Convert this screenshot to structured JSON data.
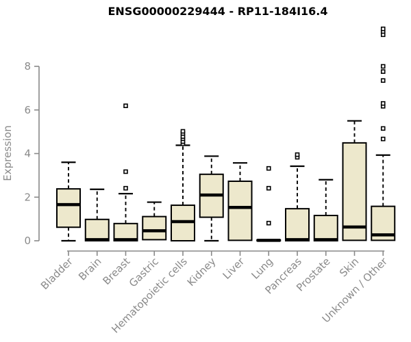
{
  "chart_data": {
    "type": "box",
    "title": "ENSG00000229444 - RP11-184I16.4",
    "ylabel": "Expression",
    "xlabel": "",
    "ylim": [
      0,
      8
    ],
    "yticks": [
      0,
      2,
      4,
      6,
      8
    ],
    "grid": false,
    "legend": false,
    "colors": {
      "box_fill": "#EDE8CC",
      "box_stroke": "#000000",
      "median": "#000000",
      "whisker": "#000000",
      "outlier_stroke": "#000000",
      "outlier_fill": "#ffffff",
      "axis": "#898989",
      "tick_label": "#8a8a8a",
      "title": "#000000",
      "background": "#ffffff"
    },
    "categories": [
      "Bladder",
      "Brain",
      "Breast",
      "Gastric",
      "Hematopoietic cells",
      "Kidney",
      "Liver",
      "Lung",
      "Pancreas",
      "Prostate",
      "Skin",
      "Unknown / Other"
    ],
    "series": [
      {
        "category": "Bladder",
        "whisker_low": 0,
        "q1": 0.62,
        "median": 1.66,
        "q3": 2.38,
        "whisker_high": 3.6,
        "outliers": []
      },
      {
        "category": "Brain",
        "whisker_low": 0,
        "q1": 0,
        "median": 0.05,
        "q3": 0.98,
        "whisker_high": 2.36,
        "outliers": []
      },
      {
        "category": "Breast",
        "whisker_low": 0,
        "q1": 0,
        "median": 0.05,
        "q3": 0.79,
        "whisker_high": 2.16,
        "outliers": [
          2.41,
          3.17,
          6.19
        ]
      },
      {
        "category": "Gastric",
        "whisker_low": 0.05,
        "q1": 0.05,
        "median": 0.46,
        "q3": 1.11,
        "whisker_high": 1.77,
        "outliers": []
      },
      {
        "category": "Hematopoietic cells",
        "whisker_low": 0,
        "q1": 0,
        "median": 0.88,
        "q3": 1.63,
        "whisker_high": 4.38,
        "outliers": [
          4.45,
          4.55,
          4.68,
          4.78,
          4.92,
          5.02
        ]
      },
      {
        "category": "Kidney",
        "whisker_low": 0,
        "q1": 1.08,
        "median": 2.1,
        "q3": 3.05,
        "whisker_high": 3.88,
        "outliers": []
      },
      {
        "category": "Liver",
        "whisker_low": 0.02,
        "q1": 0.02,
        "median": 1.53,
        "q3": 2.73,
        "whisker_high": 3.57,
        "outliers": []
      },
      {
        "category": "Lung",
        "whisker_low": 0,
        "q1": 0,
        "median": 0.02,
        "q3": 0.04,
        "whisker_high": 0.05,
        "outliers": [
          0.81,
          2.41,
          3.32
        ]
      },
      {
        "category": "Pancreas",
        "whisker_low": 0,
        "q1": 0,
        "median": 0.05,
        "q3": 1.47,
        "whisker_high": 3.42,
        "outliers": [
          3.83,
          3.95
        ]
      },
      {
        "category": "Prostate",
        "whisker_low": 0,
        "q1": 0,
        "median": 0.05,
        "q3": 1.16,
        "whisker_high": 2.8,
        "outliers": []
      },
      {
        "category": "Skin",
        "whisker_low": 0.02,
        "q1": 0.02,
        "median": 0.63,
        "q3": 4.49,
        "whisker_high": 5.5,
        "outliers": []
      },
      {
        "category": "Unknown / Other",
        "whisker_low": 0.02,
        "q1": 0.02,
        "median": 0.27,
        "q3": 1.58,
        "whisker_high": 3.93,
        "outliers": [
          4.67,
          5.15,
          6.17,
          6.3,
          7.35,
          7.76,
          8.0,
          9.45,
          9.6,
          9.72
        ]
      }
    ]
  }
}
